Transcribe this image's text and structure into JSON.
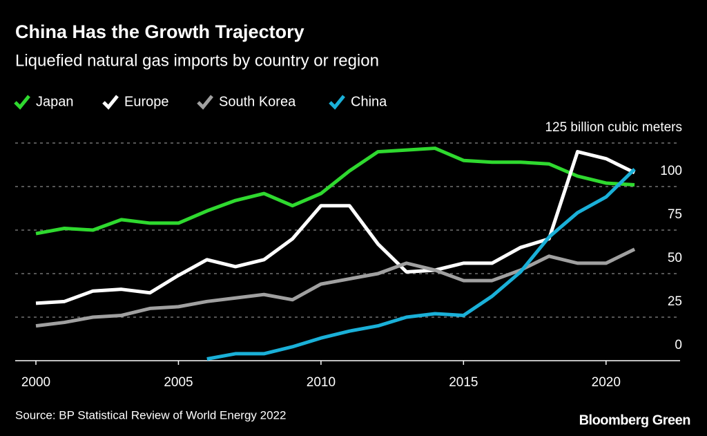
{
  "chart_data": {
    "type": "line",
    "title": "China Has the Growth Trajectory",
    "subtitle": "Liquefied natural gas imports by country or region",
    "source": "Source: BP Statistical Review of World Energy 2022",
    "brand": "Bloomberg Green",
    "x": [
      2000,
      2001,
      2002,
      2003,
      2004,
      2005,
      2006,
      2007,
      2008,
      2009,
      2010,
      2011,
      2012,
      2013,
      2014,
      2015,
      2016,
      2017,
      2018,
      2019,
      2020,
      2021
    ],
    "series": [
      {
        "name": "Japan",
        "color": "#2fd92f",
        "values": [
          73,
          76,
          75,
          81,
          79,
          79,
          86,
          92,
          96,
          89,
          96,
          109,
          120,
          121,
          122,
          115,
          114,
          114,
          113,
          106,
          102,
          101
        ]
      },
      {
        "name": "Europe",
        "color": "#ffffff",
        "values": [
          33,
          34,
          40,
          41,
          39,
          49,
          58,
          54,
          58,
          70,
          89,
          89,
          67,
          51,
          52,
          56,
          56,
          65,
          70,
          120,
          116,
          108
        ]
      },
      {
        "name": "South Korea",
        "color": "#a0a0a0",
        "values": [
          20,
          22,
          25,
          26,
          30,
          31,
          34,
          36,
          38,
          35,
          44,
          47,
          50,
          56,
          52,
          46,
          46,
          52,
          60,
          56,
          56,
          64
        ]
      },
      {
        "name": "China",
        "color": "#1ab0d8",
        "values": [
          null,
          null,
          null,
          null,
          null,
          null,
          1,
          4,
          4,
          8,
          13,
          17,
          20,
          25,
          27,
          26,
          37,
          51,
          71,
          85,
          94,
          110
        ]
      }
    ],
    "xlim": [
      1999.6,
      2022.5
    ],
    "xticks": [
      2000,
      2005,
      2010,
      2015,
      2020
    ],
    "ylim": [
      0,
      125
    ],
    "yticks": [
      0,
      25,
      50,
      75,
      100,
      {
        "value": 125,
        "label": "125 billion cubic meters"
      }
    ],
    "grid": true
  }
}
